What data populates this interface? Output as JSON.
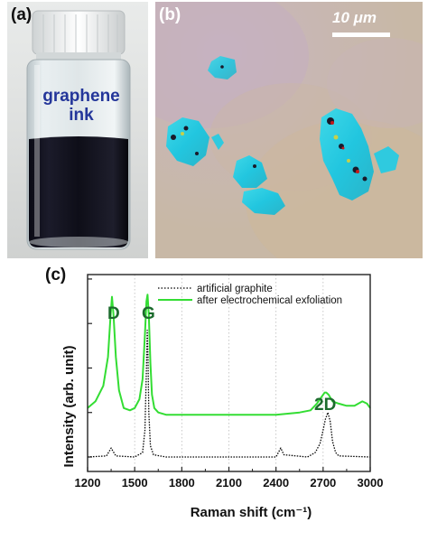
{
  "panel_a": {
    "label": "(a)",
    "ink_label_line1": "graphene",
    "ink_label_line2": "ink"
  },
  "panel_b": {
    "label": "(b)",
    "scale_bar_text": "10 μm"
  },
  "panel_c": {
    "label": "(c)",
    "peak_labels": {
      "d": "D",
      "g": "G",
      "two_d": "2D"
    }
  },
  "chart_data": {
    "type": "line",
    "xlabel": "Raman shift (cm⁻¹)",
    "ylabel": "Intensity (arb. unit)",
    "xlim": [
      1200,
      3000
    ],
    "x_ticks": [
      1200,
      1500,
      1800,
      2100,
      2400,
      2700,
      3000
    ],
    "grid": "vertical dotted lines at x ticks",
    "legend_position": "top",
    "y_ticks_labeled": false,
    "series": [
      {
        "name": "artificial graphite",
        "color": "#000000",
        "style": "dotted",
        "x": [
          1200,
          1320,
          1350,
          1380,
          1500,
          1550,
          1565,
          1575,
          1580,
          1585,
          1590,
          1600,
          1620,
          1700,
          2000,
          2300,
          2400,
          2430,
          2450,
          2600,
          2650,
          2680,
          2700,
          2715,
          2730,
          2745,
          2760,
          2780,
          2800,
          3000
        ],
        "y": [
          0.0,
          0.005,
          0.04,
          0.005,
          0.0,
          0.02,
          0.12,
          0.4,
          0.57,
          0.45,
          0.2,
          0.05,
          0.01,
          0.0,
          0.0,
          0.0,
          0.0,
          0.04,
          0.01,
          0.0,
          0.02,
          0.06,
          0.12,
          0.17,
          0.2,
          0.16,
          0.07,
          0.02,
          0.005,
          0.0
        ]
      },
      {
        "name": "after electrochemical exfoliation",
        "color": "#33dd33",
        "style": "solid",
        "x": [
          1200,
          1250,
          1300,
          1330,
          1345,
          1355,
          1365,
          1380,
          1400,
          1430,
          1470,
          1500,
          1530,
          1550,
          1565,
          1575,
          1582,
          1590,
          1600,
          1610,
          1625,
          1650,
          1700,
          1800,
          2000,
          2200,
          2400,
          2550,
          2620,
          2660,
          2690,
          2710,
          2720,
          2735,
          2760,
          2800,
          2850,
          2900,
          2950,
          2980,
          3000
        ],
        "y": [
          0.22,
          0.25,
          0.32,
          0.45,
          0.62,
          0.72,
          0.64,
          0.45,
          0.3,
          0.22,
          0.21,
          0.22,
          0.26,
          0.35,
          0.55,
          0.7,
          0.73,
          0.64,
          0.42,
          0.28,
          0.22,
          0.2,
          0.19,
          0.19,
          0.19,
          0.19,
          0.19,
          0.2,
          0.21,
          0.24,
          0.27,
          0.29,
          0.29,
          0.28,
          0.25,
          0.24,
          0.23,
          0.23,
          0.25,
          0.24,
          0.22
        ]
      }
    ]
  }
}
